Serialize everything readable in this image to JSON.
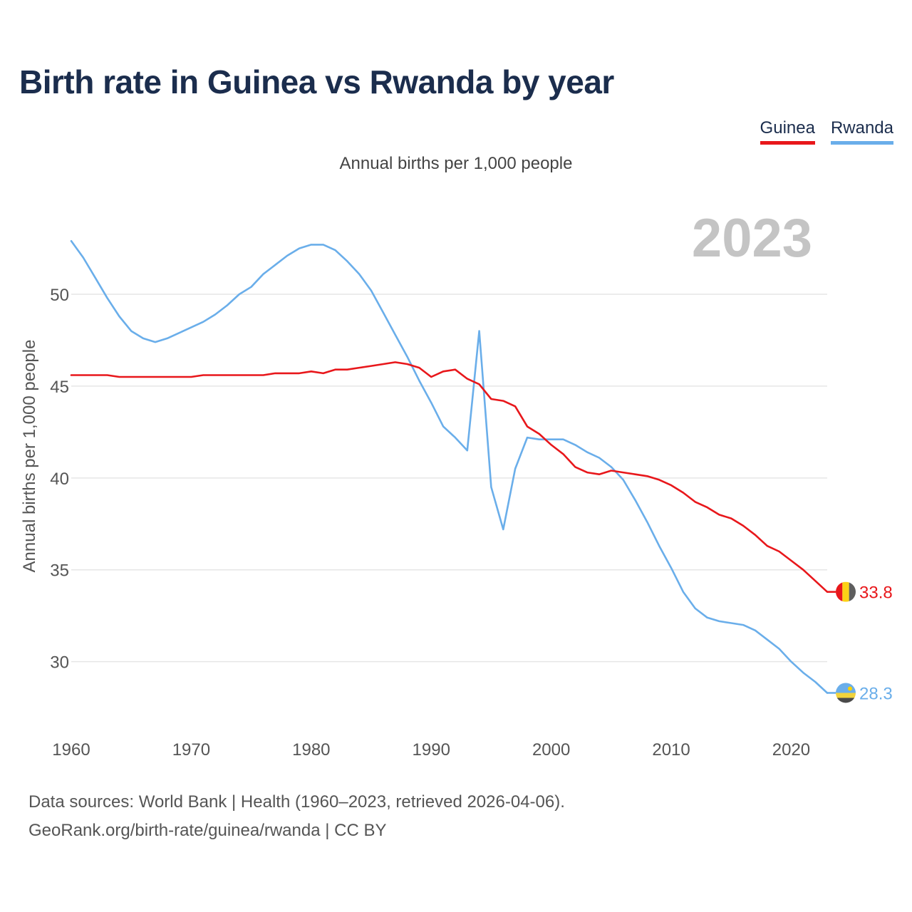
{
  "title": "Birth rate in Guinea vs Rwanda by year",
  "subtitle": "Annual births per 1,000 people",
  "legend": [
    {
      "label": "Guinea",
      "color": "#e8171b"
    },
    {
      "label": "Rwanda",
      "color": "#6aaeea"
    }
  ],
  "source": {
    "line1": "Data sources: World Bank | Health (1960–2023, retrieved 2026-04-06).",
    "line2": "GeoRank.org/birth-rate/guinea/rwanda | CC BY"
  },
  "chart_data": {
    "type": "line",
    "title": "Birth rate in Guinea vs Rwanda by year",
    "ylabel": "Annual births per 1,000 people",
    "xlabel": "",
    "year_label": "2023",
    "xlim": [
      1960,
      2023
    ],
    "ylim": [
      27,
      54.5
    ],
    "x_ticks": [
      1960,
      1970,
      1980,
      1990,
      2000,
      2010,
      2020
    ],
    "y_ticks": [
      30,
      35,
      40,
      45,
      50
    ],
    "grid": true,
    "x": [
      1960,
      1961,
      1962,
      1963,
      1964,
      1965,
      1966,
      1967,
      1968,
      1969,
      1970,
      1971,
      1972,
      1973,
      1974,
      1975,
      1976,
      1977,
      1978,
      1979,
      1980,
      1981,
      1982,
      1983,
      1984,
      1985,
      1986,
      1987,
      1988,
      1989,
      1990,
      1991,
      1992,
      1993,
      1994,
      1995,
      1996,
      1997,
      1998,
      1999,
      2000,
      2001,
      2002,
      2003,
      2004,
      2005,
      2006,
      2007,
      2008,
      2009,
      2010,
      2011,
      2012,
      2013,
      2014,
      2015,
      2016,
      2017,
      2018,
      2019,
      2020,
      2021,
      2022,
      2023
    ],
    "series": [
      {
        "name": "Guinea",
        "color": "#e8171b",
        "end_label": "33.8",
        "values": [
          45.6,
          45.6,
          45.6,
          45.6,
          45.5,
          45.5,
          45.5,
          45.5,
          45.5,
          45.5,
          45.5,
          45.6,
          45.6,
          45.6,
          45.6,
          45.6,
          45.6,
          45.7,
          45.7,
          45.7,
          45.8,
          45.7,
          45.9,
          45.9,
          46.0,
          46.1,
          46.2,
          46.3,
          46.2,
          46.0,
          45.5,
          45.8,
          45.9,
          45.4,
          45.1,
          44.3,
          44.2,
          43.9,
          42.8,
          42.4,
          41.8,
          41.3,
          40.6,
          40.3,
          40.2,
          40.4,
          40.3,
          40.2,
          40.1,
          39.9,
          39.6,
          39.2,
          38.7,
          38.4,
          38.0,
          37.8,
          37.4,
          36.9,
          36.3,
          36.0,
          35.5,
          35.0,
          34.4,
          33.8
        ]
      },
      {
        "name": "Rwanda",
        "color": "#6aaeea",
        "end_label": "28.3",
        "values": [
          52.9,
          52.0,
          50.9,
          49.8,
          48.8,
          48.0,
          47.6,
          47.4,
          47.6,
          47.9,
          48.2,
          48.5,
          48.9,
          49.4,
          50.0,
          50.4,
          51.1,
          51.6,
          52.1,
          52.5,
          52.7,
          52.7,
          52.4,
          51.8,
          51.1,
          50.2,
          49.0,
          47.8,
          46.6,
          45.3,
          44.1,
          42.8,
          42.2,
          41.5,
          48.0,
          39.5,
          37.2,
          40.5,
          42.2,
          42.1,
          42.1,
          42.1,
          41.8,
          41.4,
          41.1,
          40.6,
          39.9,
          38.8,
          37.6,
          36.3,
          35.1,
          33.8,
          32.9,
          32.4,
          32.2,
          32.1,
          32.0,
          31.7,
          31.2,
          30.7,
          30.0,
          29.4,
          28.9,
          28.3
        ]
      }
    ]
  }
}
